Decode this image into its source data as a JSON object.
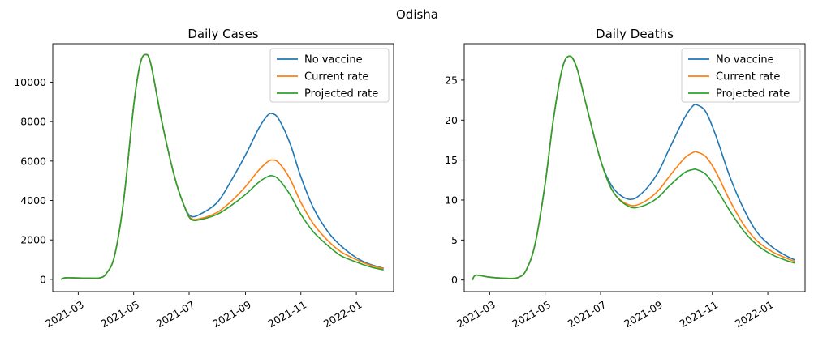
{
  "figure": {
    "suptitle": "Odisha"
  },
  "colors": {
    "no_vaccine": "#1f77b4",
    "current_rate": "#ff7f0e",
    "projected_rate": "#2ca02c"
  },
  "chart_data": [
    {
      "type": "line",
      "title": "Daily Cases",
      "xlabel": "",
      "ylabel": "",
      "x_axis_type": "date",
      "xlim": [
        "2021-02-01",
        "2022-02-11"
      ],
      "ylim": [
        -620,
        11950
      ],
      "x_ticks": [
        "2021-03",
        "2021-05",
        "2021-07",
        "2021-09",
        "2021-11",
        "2022-01"
      ],
      "y_ticks": [
        0,
        2000,
        4000,
        6000,
        8000,
        10000
      ],
      "grid": false,
      "legend_position": "top-right",
      "series": [
        {
          "name": "No vaccine",
          "color": "#1f77b4",
          "points": [
            [
              "2021-02-10",
              0
            ],
            [
              "2021-02-15",
              80
            ],
            [
              "2021-03-01",
              70
            ],
            [
              "2021-03-15",
              60
            ],
            [
              "2021-03-25",
              80
            ],
            [
              "2021-04-01",
              300
            ],
            [
              "2021-04-10",
              1200
            ],
            [
              "2021-04-20",
              4000
            ],
            [
              "2021-05-01",
              8800
            ],
            [
              "2021-05-08",
              10900
            ],
            [
              "2021-05-14",
              11400
            ],
            [
              "2021-05-20",
              10900
            ],
            [
              "2021-06-01",
              8000
            ],
            [
              "2021-06-15",
              5200
            ],
            [
              "2021-06-25",
              3800
            ],
            [
              "2021-07-03",
              3200
            ],
            [
              "2021-07-15",
              3350
            ],
            [
              "2021-08-01",
              3900
            ],
            [
              "2021-08-15",
              4900
            ],
            [
              "2021-09-01",
              6300
            ],
            [
              "2021-09-15",
              7600
            ],
            [
              "2021-09-25",
              8300
            ],
            [
              "2021-10-01",
              8400
            ],
            [
              "2021-10-08",
              8100
            ],
            [
              "2021-10-20",
              6900
            ],
            [
              "2021-11-01",
              5200
            ],
            [
              "2021-11-15",
              3600
            ],
            [
              "2021-12-01",
              2400
            ],
            [
              "2021-12-15",
              1700
            ],
            [
              "2022-01-01",
              1100
            ],
            [
              "2022-01-15",
              780
            ],
            [
              "2022-01-31",
              560
            ]
          ]
        },
        {
          "name": "Current rate",
          "color": "#ff7f0e",
          "points": [
            [
              "2021-02-10",
              0
            ],
            [
              "2021-02-15",
              80
            ],
            [
              "2021-03-01",
              70
            ],
            [
              "2021-03-15",
              60
            ],
            [
              "2021-03-25",
              80
            ],
            [
              "2021-04-01",
              300
            ],
            [
              "2021-04-10",
              1200
            ],
            [
              "2021-04-20",
              4000
            ],
            [
              "2021-05-01",
              8800
            ],
            [
              "2021-05-08",
              10900
            ],
            [
              "2021-05-14",
              11400
            ],
            [
              "2021-05-20",
              10900
            ],
            [
              "2021-06-01",
              8000
            ],
            [
              "2021-06-15",
              5200
            ],
            [
              "2021-06-25",
              3800
            ],
            [
              "2021-07-03",
              3100
            ],
            [
              "2021-07-15",
              3100
            ],
            [
              "2021-08-01",
              3400
            ],
            [
              "2021-08-15",
              3900
            ],
            [
              "2021-09-01",
              4700
            ],
            [
              "2021-09-15",
              5500
            ],
            [
              "2021-09-25",
              5950
            ],
            [
              "2021-10-01",
              6050
            ],
            [
              "2021-10-08",
              5900
            ],
            [
              "2021-10-20",
              5100
            ],
            [
              "2021-11-01",
              3900
            ],
            [
              "2021-11-15",
              2800
            ],
            [
              "2021-12-01",
              1950
            ],
            [
              "2021-12-15",
              1400
            ],
            [
              "2022-01-01",
              1000
            ],
            [
              "2022-01-15",
              740
            ],
            [
              "2022-01-31",
              540
            ]
          ]
        },
        {
          "name": "Projected rate",
          "color": "#2ca02c",
          "points": [
            [
              "2021-02-10",
              0
            ],
            [
              "2021-02-15",
              80
            ],
            [
              "2021-03-01",
              70
            ],
            [
              "2021-03-15",
              60
            ],
            [
              "2021-03-25",
              80
            ],
            [
              "2021-04-01",
              300
            ],
            [
              "2021-04-10",
              1200
            ],
            [
              "2021-04-20",
              4000
            ],
            [
              "2021-05-01",
              8800
            ],
            [
              "2021-05-08",
              10900
            ],
            [
              "2021-05-14",
              11400
            ],
            [
              "2021-05-20",
              10900
            ],
            [
              "2021-06-01",
              8000
            ],
            [
              "2021-06-15",
              5200
            ],
            [
              "2021-06-25",
              3800
            ],
            [
              "2021-07-03",
              3050
            ],
            [
              "2021-07-15",
              3050
            ],
            [
              "2021-08-01",
              3300
            ],
            [
              "2021-08-15",
              3700
            ],
            [
              "2021-09-01",
              4300
            ],
            [
              "2021-09-15",
              4900
            ],
            [
              "2021-09-25",
              5200
            ],
            [
              "2021-10-01",
              5250
            ],
            [
              "2021-10-08",
              5050
            ],
            [
              "2021-10-20",
              4300
            ],
            [
              "2021-11-01",
              3300
            ],
            [
              "2021-11-15",
              2400
            ],
            [
              "2021-12-01",
              1700
            ],
            [
              "2021-12-15",
              1200
            ],
            [
              "2022-01-01",
              880
            ],
            [
              "2022-01-15",
              650
            ],
            [
              "2022-01-31",
              480
            ]
          ]
        }
      ]
    },
    {
      "type": "line",
      "title": "Daily Deaths",
      "xlabel": "",
      "ylabel": "",
      "x_axis_type": "date",
      "xlim": [
        "2021-02-01",
        "2022-02-11"
      ],
      "ylim": [
        -1.45,
        29.55
      ],
      "x_ticks": [
        "2021-03",
        "2021-05",
        "2021-07",
        "2021-09",
        "2021-11",
        "2022-01"
      ],
      "y_ticks": [
        0,
        5,
        10,
        15,
        20,
        25
      ],
      "grid": false,
      "legend_position": "top-right",
      "series": [
        {
          "name": "No vaccine",
          "color": "#1f77b4",
          "points": [
            [
              "2021-02-10",
              0
            ],
            [
              "2021-02-14",
              0.6
            ],
            [
              "2021-03-01",
              0.35
            ],
            [
              "2021-03-20",
              0.2
            ],
            [
              "2021-04-01",
              0.3
            ],
            [
              "2021-04-10",
              1.2
            ],
            [
              "2021-04-20",
              4.5
            ],
            [
              "2021-05-01",
              12
            ],
            [
              "2021-05-10",
              20
            ],
            [
              "2021-05-20",
              26.5
            ],
            [
              "2021-05-28",
              28
            ],
            [
              "2021-06-05",
              26.5
            ],
            [
              "2021-06-15",
              22
            ],
            [
              "2021-07-01",
              15
            ],
            [
              "2021-07-15",
              11.5
            ],
            [
              "2021-08-01",
              10.1
            ],
            [
              "2021-08-15",
              10.8
            ],
            [
              "2021-09-01",
              13.2
            ],
            [
              "2021-09-15",
              16.5
            ],
            [
              "2021-10-01",
              20.2
            ],
            [
              "2021-10-10",
              21.7
            ],
            [
              "2021-10-15",
              21.9
            ],
            [
              "2021-10-25",
              21
            ],
            [
              "2021-11-05",
              18
            ],
            [
              "2021-11-20",
              13
            ],
            [
              "2021-12-05",
              9
            ],
            [
              "2021-12-20",
              6
            ],
            [
              "2022-01-05",
              4.2
            ],
            [
              "2022-01-20",
              3.1
            ],
            [
              "2022-01-31",
              2.5
            ]
          ]
        },
        {
          "name": "Current rate",
          "color": "#ff7f0e",
          "points": [
            [
              "2021-02-10",
              0
            ],
            [
              "2021-02-14",
              0.6
            ],
            [
              "2021-03-01",
              0.35
            ],
            [
              "2021-03-20",
              0.2
            ],
            [
              "2021-04-01",
              0.3
            ],
            [
              "2021-04-10",
              1.2
            ],
            [
              "2021-04-20",
              4.5
            ],
            [
              "2021-05-01",
              12
            ],
            [
              "2021-05-10",
              20
            ],
            [
              "2021-05-20",
              26.5
            ],
            [
              "2021-05-28",
              28
            ],
            [
              "2021-06-05",
              26.5
            ],
            [
              "2021-06-15",
              22
            ],
            [
              "2021-07-01",
              15
            ],
            [
              "2021-07-15",
              11
            ],
            [
              "2021-08-01",
              9.4
            ],
            [
              "2021-08-15",
              9.6
            ],
            [
              "2021-09-01",
              11
            ],
            [
              "2021-09-15",
              13
            ],
            [
              "2021-10-01",
              15.2
            ],
            [
              "2021-10-10",
              15.9
            ],
            [
              "2021-10-15",
              16
            ],
            [
              "2021-10-25",
              15.4
            ],
            [
              "2021-11-05",
              13.5
            ],
            [
              "2021-11-20",
              10
            ],
            [
              "2021-12-05",
              7
            ],
            [
              "2021-12-20",
              4.9
            ],
            [
              "2022-01-05",
              3.6
            ],
            [
              "2022-01-20",
              2.8
            ],
            [
              "2022-01-31",
              2.3
            ]
          ]
        },
        {
          "name": "Projected rate",
          "color": "#2ca02c",
          "points": [
            [
              "2021-02-10",
              0
            ],
            [
              "2021-02-14",
              0.6
            ],
            [
              "2021-03-01",
              0.35
            ],
            [
              "2021-03-20",
              0.2
            ],
            [
              "2021-04-01",
              0.3
            ],
            [
              "2021-04-10",
              1.2
            ],
            [
              "2021-04-20",
              4.5
            ],
            [
              "2021-05-01",
              12
            ],
            [
              "2021-05-10",
              20
            ],
            [
              "2021-05-20",
              26.5
            ],
            [
              "2021-05-28",
              28
            ],
            [
              "2021-06-05",
              26.5
            ],
            [
              "2021-06-15",
              22
            ],
            [
              "2021-07-01",
              15
            ],
            [
              "2021-07-15",
              11
            ],
            [
              "2021-08-01",
              9.2
            ],
            [
              "2021-08-15",
              9.2
            ],
            [
              "2021-09-01",
              10.2
            ],
            [
              "2021-09-15",
              11.8
            ],
            [
              "2021-10-01",
              13.4
            ],
            [
              "2021-10-10",
              13.8
            ],
            [
              "2021-10-15",
              13.8
            ],
            [
              "2021-10-25",
              13.2
            ],
            [
              "2021-11-05",
              11.5
            ],
            [
              "2021-11-20",
              8.7
            ],
            [
              "2021-12-05",
              6.2
            ],
            [
              "2021-12-20",
              4.4
            ],
            [
              "2022-01-05",
              3.2
            ],
            [
              "2022-01-20",
              2.5
            ],
            [
              "2022-01-31",
              2.1
            ]
          ]
        }
      ]
    }
  ]
}
